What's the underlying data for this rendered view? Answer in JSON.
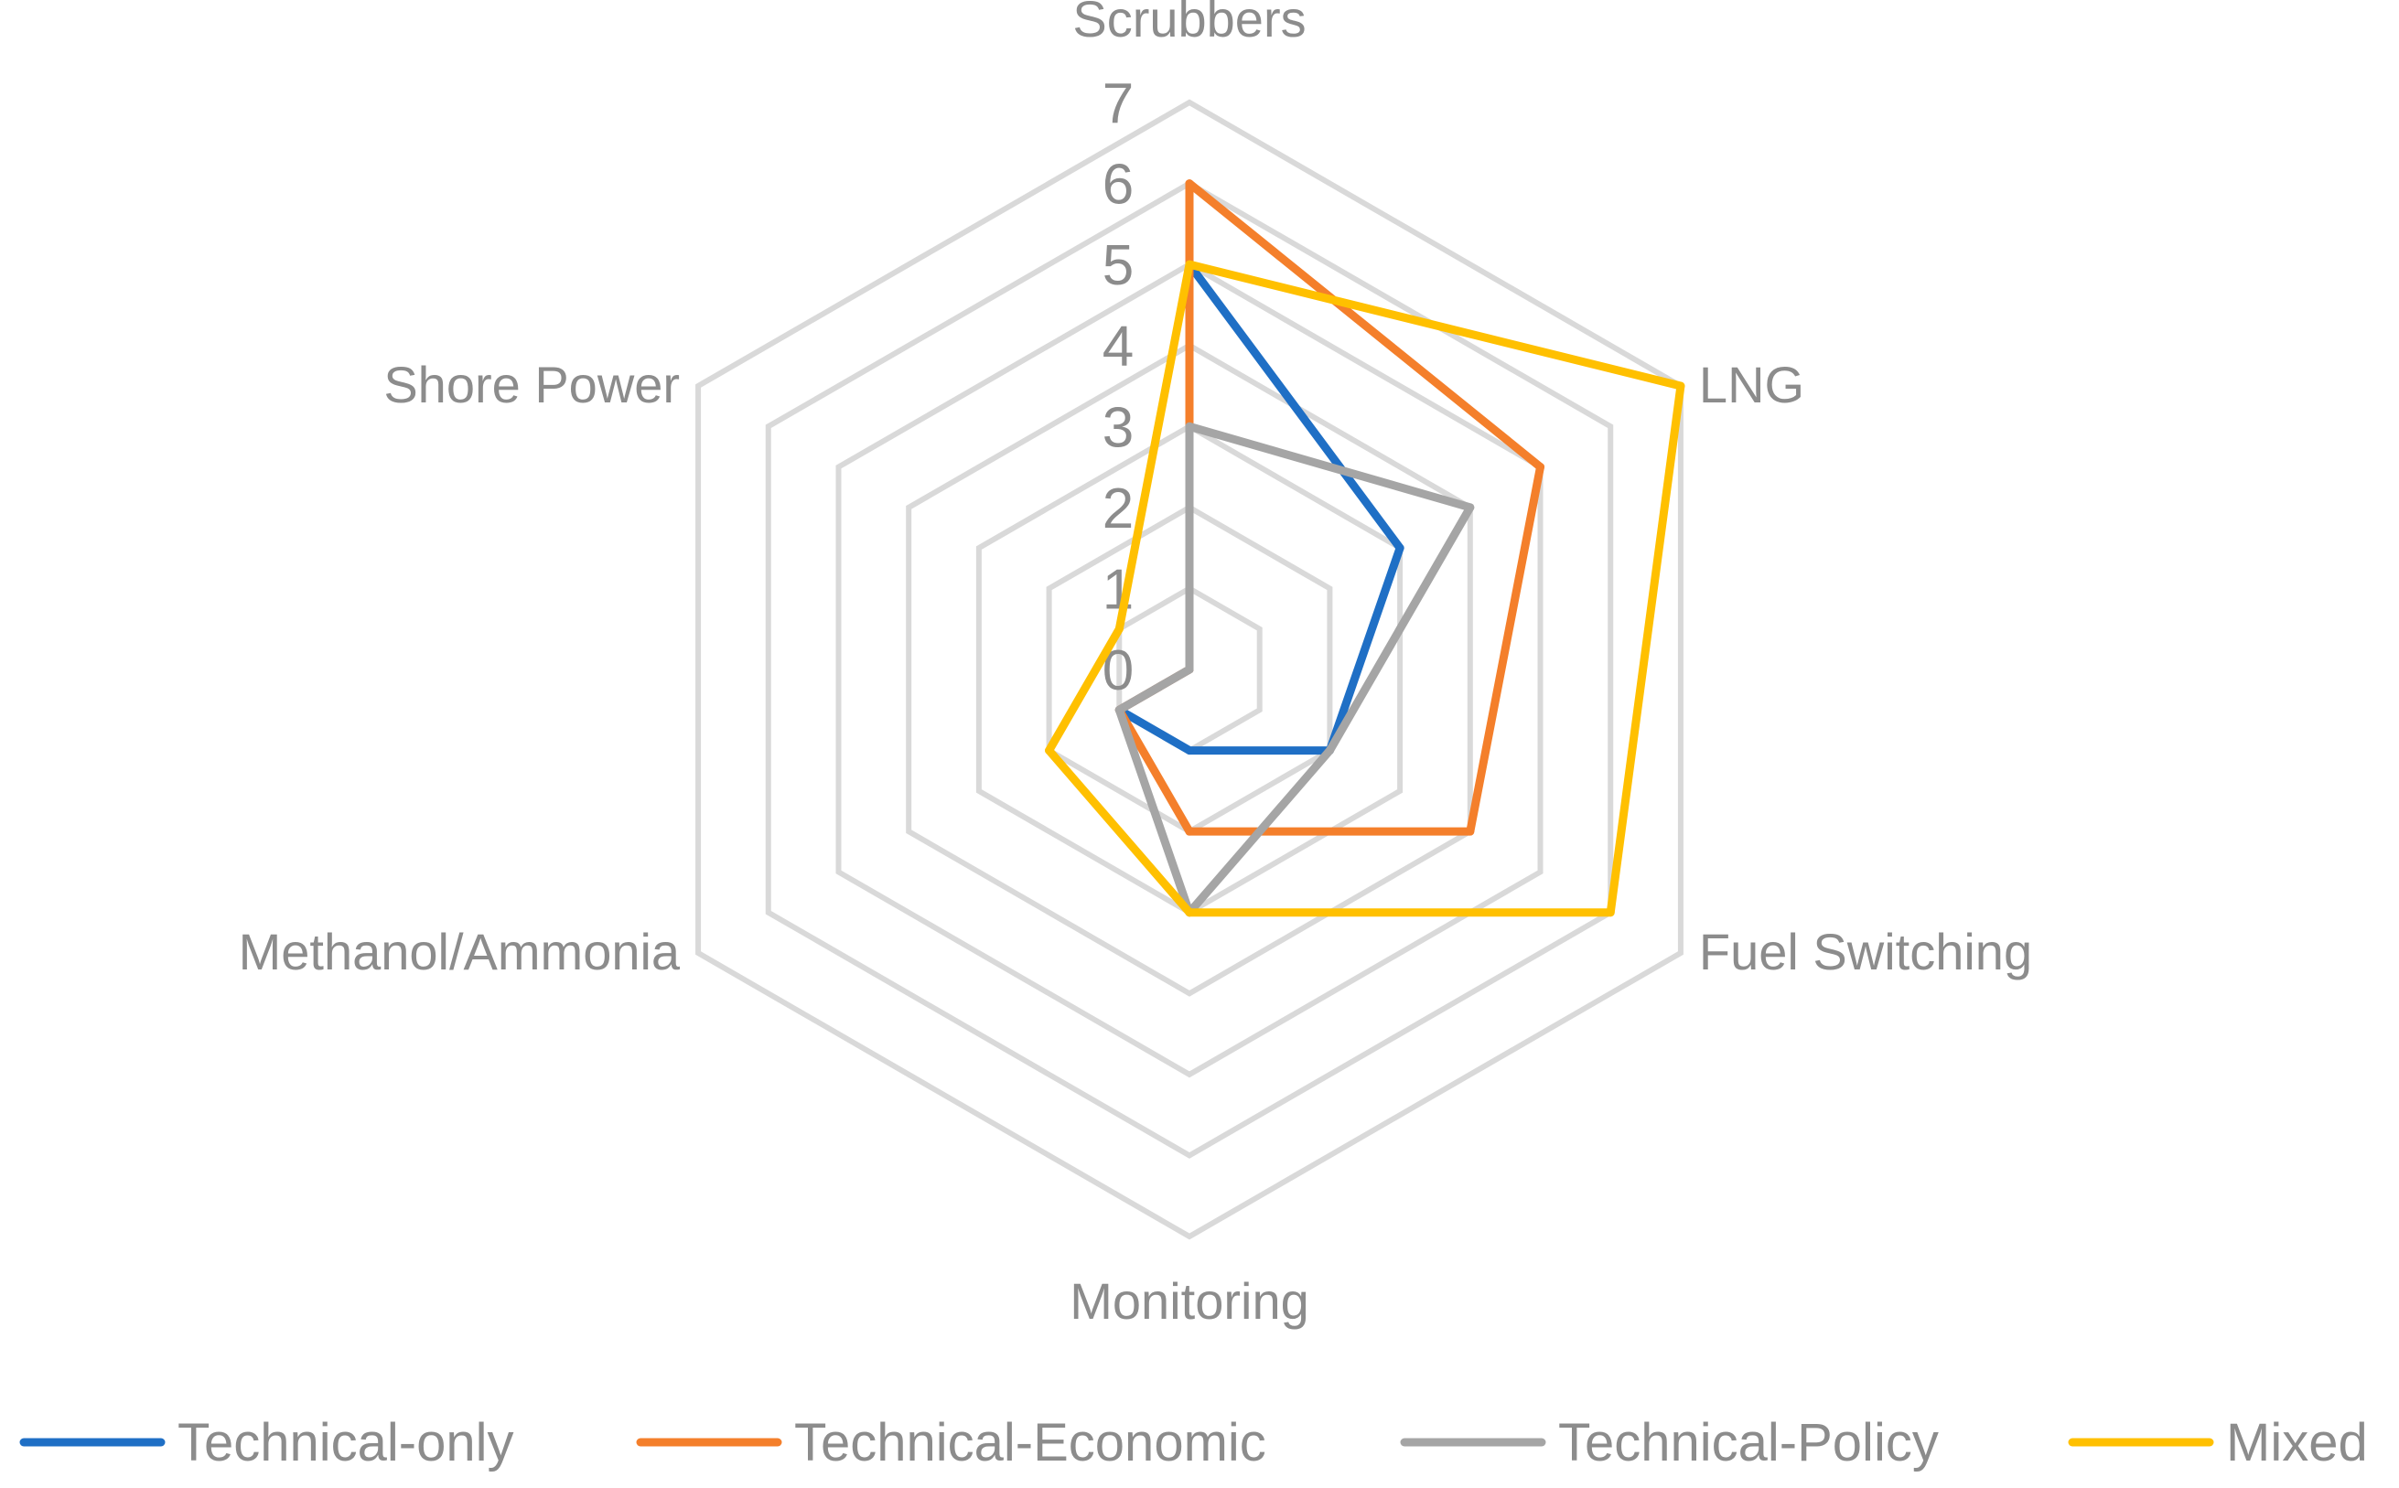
{
  "chart_data": {
    "type": "radar",
    "title": "",
    "axes": [
      "Scrubbers",
      "LNG",
      "Fuel Switching",
      "Monitoring",
      "Methanol/Ammonia",
      "Shore Power"
    ],
    "ticks": [
      "0",
      "1",
      "2",
      "3",
      "4",
      "5",
      "6",
      "7"
    ],
    "range": [
      0,
      7
    ],
    "gridlines": true,
    "legend_position": "bottom",
    "series": [
      {
        "name": "Technical-only",
        "color": "#1F6FC5",
        "values": [
          5,
          3,
          2,
          1,
          1,
          0
        ]
      },
      {
        "name": "Technical-Economic",
        "color": "#F47F2B",
        "values": [
          6,
          5,
          4,
          2,
          1,
          0
        ]
      },
      {
        "name": "Technical-Policy",
        "color": "#A5A5A5",
        "values": [
          3,
          4,
          2,
          3,
          1,
          0
        ]
      },
      {
        "name": "Mixed",
        "color": "#FFC000",
        "values": [
          5,
          7,
          6,
          3,
          2,
          1
        ]
      }
    ]
  },
  "colors": {
    "grid": "#D9D9D9",
    "text": "#8C8C8C"
  }
}
